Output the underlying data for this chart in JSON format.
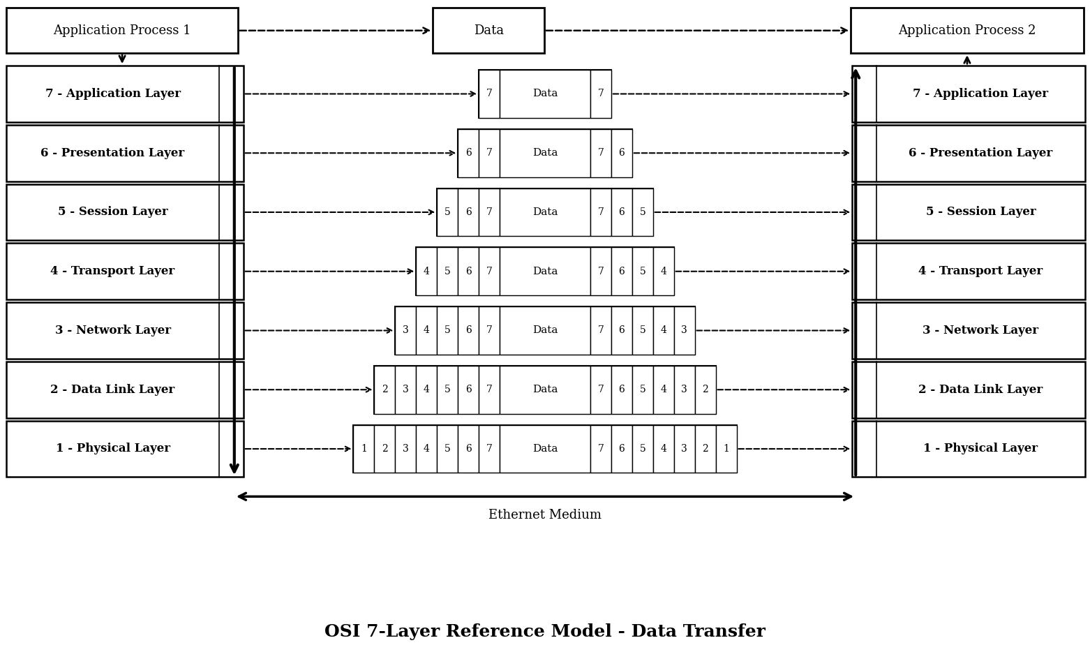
{
  "title": "OSI 7-Layer Reference Model - Data Transfer",
  "background_color": "#ffffff",
  "layers": [
    {
      "num": 7,
      "name": "7 - Application Layer"
    },
    {
      "num": 6,
      "name": "6 - Presentation Layer"
    },
    {
      "num": 5,
      "name": "5 - Session Layer"
    },
    {
      "num": 4,
      "name": "4 - Transport Layer"
    },
    {
      "num": 3,
      "name": "3 - Network Layer"
    },
    {
      "num": 2,
      "name": "2 - Data Link Layer"
    },
    {
      "num": 1,
      "name": "1 - Physical Layer"
    }
  ],
  "top_left": "Application Process 1",
  "top_center": "Data",
  "top_right": "Application Process 2",
  "ethernet_label": "Ethernet Medium",
  "fig_width": 15.62,
  "fig_height": 9.34,
  "font_family": "serif"
}
